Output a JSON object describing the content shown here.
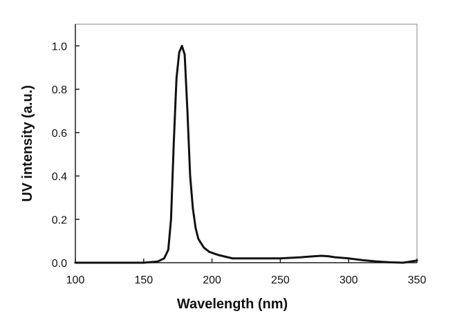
{
  "chart_data": {
    "type": "line",
    "title": "",
    "xlabel": "Wavelength (nm)",
    "ylabel": "UV intensity (a.u.)",
    "xlim": [
      100,
      350
    ],
    "ylim": [
      0,
      1.1
    ],
    "x_ticks": [
      100,
      150,
      200,
      250,
      300,
      350
    ],
    "y_ticks": [
      0.0,
      0.2,
      0.4,
      0.6,
      0.8,
      1.0
    ],
    "x_tick_labels": [
      "100",
      "150",
      "200",
      "250",
      "300",
      "350"
    ],
    "y_tick_labels": [
      "0.0",
      "0.2",
      "0.4",
      "0.6",
      "0.8",
      "1.0"
    ],
    "grid": false,
    "legend": "none",
    "series": [
      {
        "color": "#111111",
        "x": [
          100,
          150,
          160,
          165,
          168,
          170,
          172,
          174,
          176,
          178,
          180,
          182,
          184,
          186,
          188,
          190,
          194,
          198,
          205,
          215,
          230,
          250,
          265,
          275,
          280,
          285,
          290,
          300,
          310,
          320,
          330,
          340,
          350
        ],
        "y": [
          0.0,
          0.0,
          0.005,
          0.02,
          0.06,
          0.2,
          0.55,
          0.85,
          0.97,
          1.0,
          0.96,
          0.7,
          0.4,
          0.25,
          0.16,
          0.11,
          0.07,
          0.05,
          0.035,
          0.02,
          0.02,
          0.02,
          0.025,
          0.03,
          0.032,
          0.03,
          0.025,
          0.02,
          0.012,
          0.006,
          0.002,
          0.0,
          0.01
        ]
      }
    ]
  }
}
